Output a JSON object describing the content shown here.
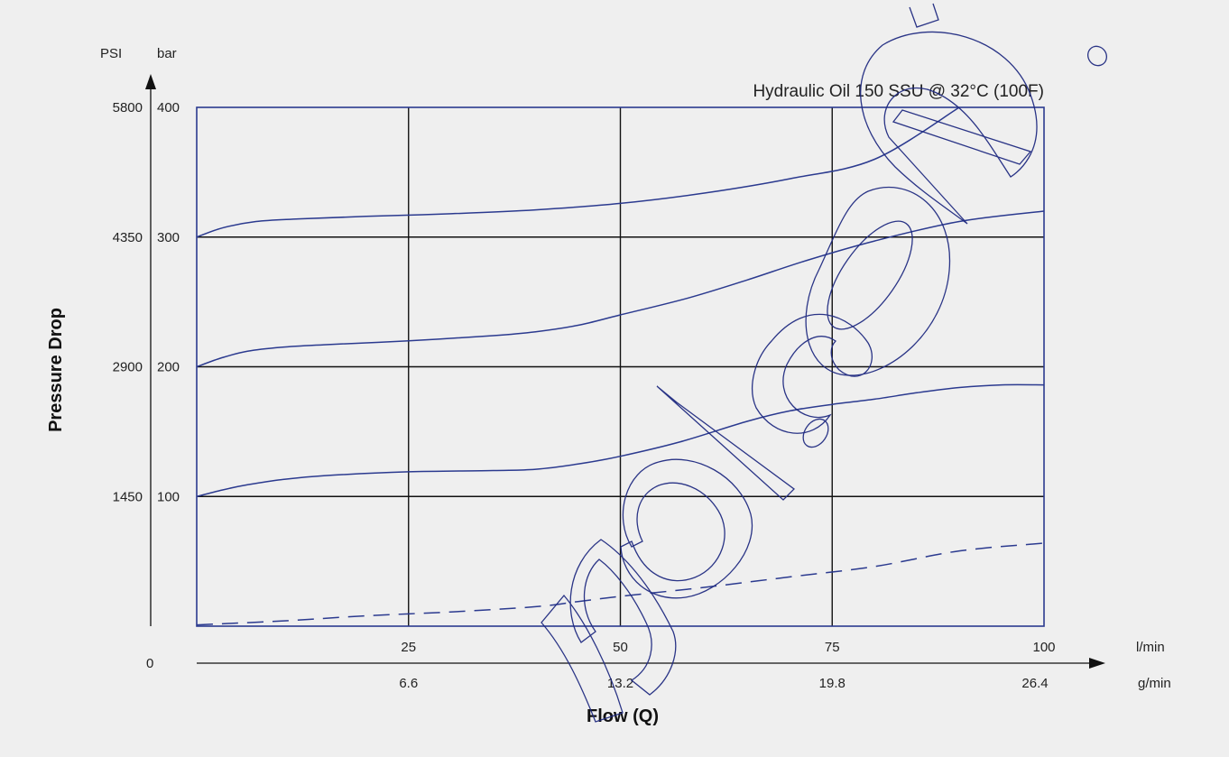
{
  "chart_data": {
    "type": "line",
    "title": "Hydraulic Oil 150 SSU @ 32°C (100F)",
    "xlabel": "Flow (Q)",
    "ylabel": "Pressure Drop",
    "x_unit_primary": "l/min",
    "x_unit_secondary": "g/min",
    "y_unit_primary": "PSI",
    "y_unit_secondary": "bar",
    "xlim": [
      0,
      100
    ],
    "ylim": [
      0,
      400
    ],
    "origin_label": "0",
    "x_ticks": [
      {
        "value": 25,
        "label": "25",
        "secondary": "6.6"
      },
      {
        "value": 50,
        "label": "50",
        "secondary": "13.2"
      },
      {
        "value": 75,
        "label": "75",
        "secondary": "19.8"
      },
      {
        "value": 100,
        "label": "100",
        "secondary": "26.4"
      }
    ],
    "y_ticks": [
      {
        "value": 100,
        "label": "100",
        "psi": "1450"
      },
      {
        "value": 200,
        "label": "200",
        "psi": "2900"
      },
      {
        "value": 300,
        "label": "300",
        "psi": "4350"
      },
      {
        "value": 400,
        "label": "400",
        "psi": "5800"
      }
    ],
    "grid": true,
    "series": [
      {
        "style": "solid",
        "x": [
          0,
          3,
          7,
          12,
          20,
          30,
          40,
          50,
          60,
          70,
          80,
          90
        ],
        "y": [
          300,
          307,
          312,
          314,
          316,
          318,
          321,
          326,
          334,
          345,
          360,
          400
        ]
      },
      {
        "style": "solid",
        "x": [
          0,
          3,
          6,
          10,
          15,
          25,
          35,
          40,
          45,
          50,
          58,
          65,
          72,
          80,
          90,
          100
        ],
        "y": [
          200,
          207,
          212,
          215,
          217,
          220,
          224,
          227,
          232,
          240,
          253,
          267,
          282,
          297,
          312,
          320
        ]
      },
      {
        "style": "solid",
        "x": [
          0,
          3,
          6,
          10,
          15,
          25,
          35,
          40,
          45,
          50,
          57,
          65,
          70,
          75,
          80,
          85,
          90,
          95,
          100
        ],
        "y": [
          100,
          105,
          109,
          113,
          116,
          119,
          120,
          121,
          125,
          131,
          142,
          158,
          166,
          171,
          175,
          180,
          184,
          186,
          186
        ]
      },
      {
        "style": "dashed",
        "x": [
          0,
          10,
          20,
          30,
          40,
          45,
          50,
          60,
          70,
          80,
          90,
          100
        ],
        "y": [
          1,
          4,
          8,
          11,
          15,
          19,
          23,
          30,
          38,
          46,
          58,
          64
        ]
      }
    ]
  }
}
